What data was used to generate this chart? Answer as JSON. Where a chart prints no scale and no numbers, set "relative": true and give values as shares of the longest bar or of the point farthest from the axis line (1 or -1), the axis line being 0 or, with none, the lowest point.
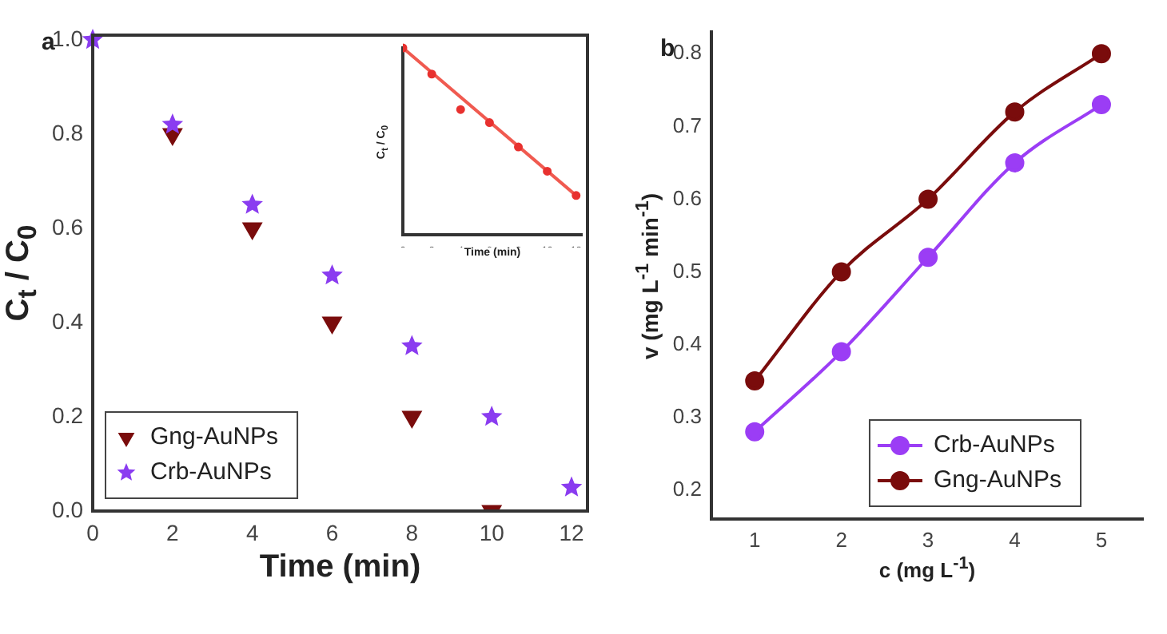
{
  "chart_data": [
    {
      "type": "scatter",
      "ylabel": "C$_{t}$ / C$_{0}$",
      "xlabel": "Time (min)",
      "annotations": [
        "a"
      ],
      "x": [
        0,
        2,
        4,
        6,
        8,
        10,
        12
      ],
      "xlim": [
        0,
        12.4
      ],
      "xticks": [
        0,
        2,
        4,
        6,
        8,
        10,
        12
      ],
      "ylim": [
        0,
        1.01
      ],
      "yticks": [
        {
          "value": 0,
          "label": "0.0"
        },
        0.2,
        0.4,
        0.6,
        0.8,
        {
          "value": 1,
          "label": "1.0"
        }
      ],
      "grid": false,
      "legend": "bottom left",
      "series": [
        {
          "name": "Gng-AuNPs",
          "color": "#7a0c0c",
          "marker": "triangle",
          "values": [
            null,
            0.8,
            0.6,
            0.4,
            0.2,
            0.0,
            null
          ]
        },
        {
          "name": "Crb-AuNPs",
          "color": "#8a3cf0",
          "marker": "star",
          "values": [
            1.0,
            0.82,
            0.65,
            0.5,
            0.35,
            0.2,
            0.05
          ]
        }
      ]
    },
    {
      "type": "scatter",
      "relative": true,
      "tick_labels": "x",
      "grid": false,
      "xlabel": "Time (min)",
      "ylabel": "C$_{t}$ / C$_{0}$",
      "x": [
        0,
        2,
        4,
        6,
        8,
        10,
        12
      ],
      "xlim": [
        0,
        12.4
      ],
      "xticks": [
        0,
        2,
        4,
        6,
        8,
        10,
        12
      ],
      "series": [
        {
          "color": "#e8312f",
          "marker": "circle",
          "values": [
            1,
            0.86,
            0.67,
            0.6,
            0.47,
            0.34,
            0.21
          ]
        },
        {
          "type": "line",
          "color": "#f05a50",
          "marker": "none",
          "x": [
            0,
            12
          ],
          "values": [
            1,
            0.21
          ]
        }
      ]
    },
    {
      "type": "line",
      "ylabel": "v (mg L$^{-1}$ min$^{-1}$)",
      "xlabel": "c (mg L$^{-1}$)",
      "annotations": [
        "b"
      ],
      "x": [
        1,
        2,
        3,
        4,
        5
      ],
      "xlim": [
        0.5,
        5.48
      ],
      "xticks": [
        1,
        2,
        3,
        4,
        5
      ],
      "ylim": [
        0.16,
        0.83
      ],
      "yticks": [
        0.2,
        0.3,
        0.4,
        0.5,
        0.6,
        0.7,
        0.8
      ],
      "grid": false,
      "legend": "bottom",
      "marker": "circle",
      "series": [
        {
          "name": "Crb-AuNPs",
          "color": "#9b3df5",
          "values": [
            0.28,
            0.39,
            0.52,
            0.65,
            0.73
          ]
        },
        {
          "name": "Gng-AuNPs",
          "color": "#7a0c0c",
          "values": [
            0.35,
            0.5,
            0.6,
            0.72,
            0.8
          ]
        }
      ]
    }
  ]
}
